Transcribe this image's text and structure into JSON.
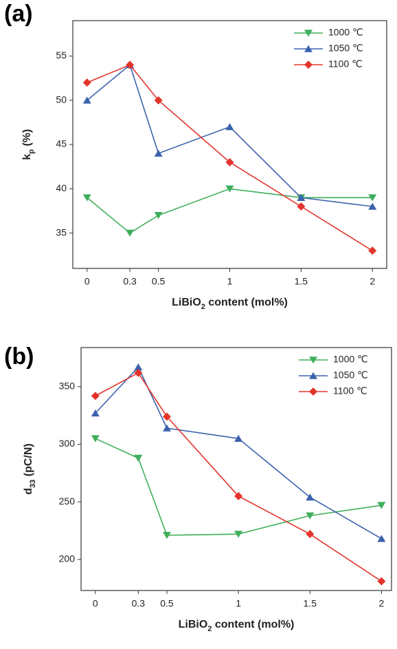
{
  "chart_data": [
    {
      "type": "line",
      "panel_label": "(a)",
      "ylabel": [
        "k",
        "p",
        " (%)"
      ],
      "xlabel": [
        "LiBiO",
        "2",
        " content (mol%)"
      ],
      "x": [
        0,
        0.3,
        0.5,
        1,
        1.5,
        2
      ],
      "xlim": [
        -0.1,
        2.1
      ],
      "xticks": [
        0,
        0.3,
        0.5,
        1,
        1.5,
        2
      ],
      "ylim": [
        31,
        59
      ],
      "yticks": [
        35,
        40,
        45,
        50,
        55
      ],
      "legend": "upper right",
      "series": [
        {
          "name": "1000 ℃",
          "color": "#3fae5b",
          "marker": "triangle-down",
          "values": [
            39,
            35,
            37,
            40,
            39,
            39
          ]
        },
        {
          "name": "1050 ℃",
          "color": "#3b62ad",
          "marker": "triangle-up",
          "values": [
            50,
            54,
            44,
            47,
            39,
            38
          ]
        },
        {
          "name": "1100 ℃",
          "color": "#e3342c",
          "marker": "diamond",
          "values": [
            52,
            54,
            50,
            43,
            38,
            33
          ]
        }
      ]
    },
    {
      "type": "line",
      "panel_label": "(b)",
      "ylabel": [
        "d",
        "33",
        " (pC/N)"
      ],
      "xlabel": [
        "LiBiO",
        "2",
        " content (mol%)"
      ],
      "x": [
        0,
        0.3,
        0.5,
        1,
        1.5,
        2
      ],
      "xlim": [
        -0.1,
        2.07
      ],
      "xticks": [
        0,
        0.3,
        0.5,
        1,
        1.5,
        2
      ],
      "ylim": [
        173,
        384
      ],
      "yticks": [
        200,
        250,
        300,
        350
      ],
      "legend": "upper right",
      "series": [
        {
          "name": "1000 ℃",
          "color": "#3fae5b",
          "marker": "triangle-down",
          "values": [
            305,
            288,
            221,
            222,
            238,
            247
          ]
        },
        {
          "name": "1050 ℃",
          "color": "#3b62ad",
          "marker": "triangle-up",
          "values": [
            327,
            367,
            314,
            305,
            254,
            218
          ]
        },
        {
          "name": "1100 ℃",
          "color": "#e3342c",
          "marker": "diamond",
          "values": [
            342,
            362,
            324,
            255,
            222,
            181
          ]
        }
      ]
    }
  ]
}
